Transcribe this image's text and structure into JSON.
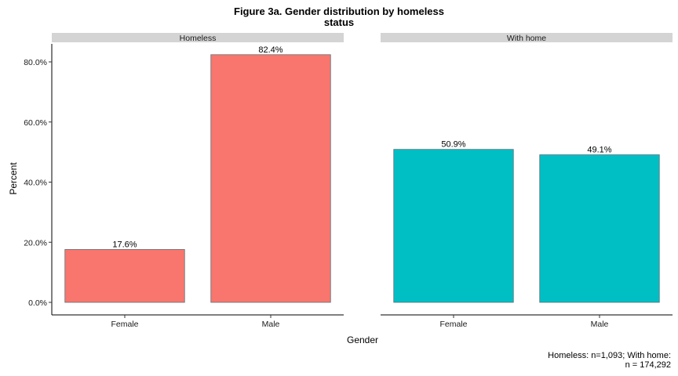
{
  "chart_data": {
    "type": "bar",
    "title_line1": "Figure 3a. Gender distribution by homeless",
    "title_line2": "status",
    "xlabel": "Gender",
    "ylabel": "Percent",
    "ylim": [
      0,
      85
    ],
    "yticks": [
      "0.0%",
      "20.0%",
      "40.0%",
      "60.0%",
      "80.0%"
    ],
    "ytick_values": [
      0,
      20,
      40,
      60,
      80
    ],
    "categories": [
      "Female",
      "Male"
    ],
    "facets": [
      {
        "name": "Homeless",
        "color": "#F8766D",
        "values": [
          17.6,
          82.4
        ],
        "labels": [
          "17.6%",
          "82.4%"
        ]
      },
      {
        "name": "With home",
        "color": "#00BFC4",
        "values": [
          50.9,
          49.1
        ],
        "labels": [
          "50.9%",
          "49.1%"
        ]
      }
    ],
    "caption_line1": "Homeless: n=1,093; With home:",
    "caption_line2": "n = 174,292",
    "grid": false,
    "legend": "none"
  }
}
